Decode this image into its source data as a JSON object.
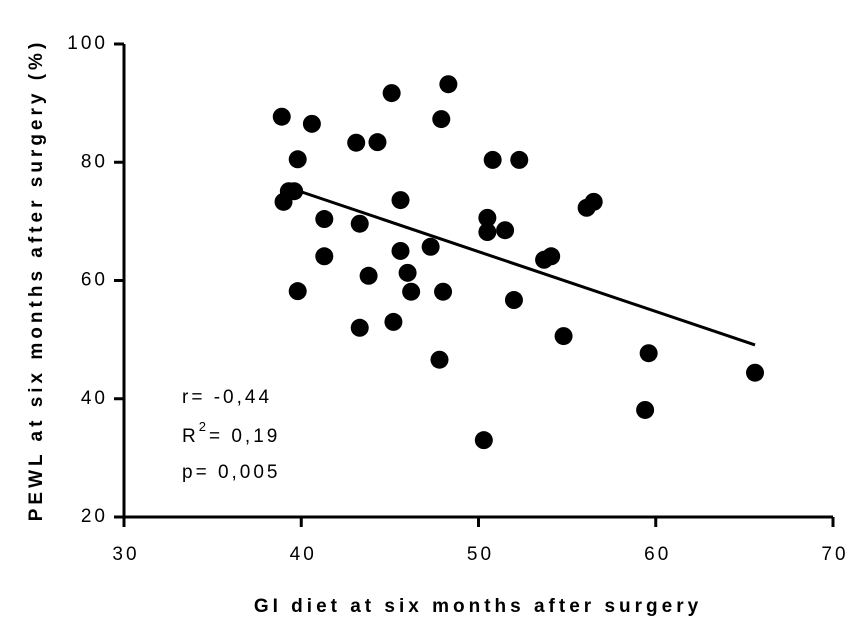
{
  "chart_data": {
    "type": "scatter",
    "x_label": "GI diet at six months after surgery",
    "y_label": "PEWL at six months after surgery (%)",
    "xlim": [
      30,
      70
    ],
    "xticks": [
      30,
      40,
      50,
      60,
      70
    ],
    "ylim": [
      20,
      100
    ],
    "yticks": [
      20,
      40,
      60,
      80,
      100
    ],
    "color": "#000000",
    "x": [
      38.9,
      40.6,
      48.3,
      45.1,
      47.9,
      43.1,
      44.3,
      39.8,
      50.8,
      52.3,
      39.3,
      39.6,
      39.0,
      45.6,
      56.5,
      56.1,
      41.3,
      50.5,
      43.3,
      51.5,
      50.5,
      45.6,
      47.3,
      54.1,
      53.7,
      41.3,
      46.0,
      43.8,
      39.8,
      46.2,
      48.0,
      52.0,
      43.3,
      45.2,
      54.8,
      59.6,
      47.8,
      65.6,
      59.4,
      50.3
    ],
    "values": [
      87.7,
      86.5,
      93.2,
      91.7,
      87.3,
      83.3,
      83.4,
      80.5,
      80.4,
      80.4,
      75.1,
      75.1,
      73.3,
      73.6,
      73.3,
      72.3,
      70.4,
      70.6,
      69.6,
      68.5,
      68.2,
      65.0,
      65.7,
      64.1,
      63.5,
      64.1,
      61.3,
      60.8,
      58.2,
      58.1,
      58.1,
      56.7,
      52.0,
      53.0,
      50.6,
      47.7,
      46.6,
      44.4,
      38.1,
      33.0
    ],
    "trendline": {
      "x": [
        39.4,
        65.6
      ],
      "values": [
        75.6,
        49.1
      ]
    },
    "annotations": [
      {
        "text": "r= -0,44"
      },
      {
        "text": "R",
        "sup": "2",
        "rest": "= 0,19"
      },
      {
        "text": "p= 0,005"
      }
    ]
  }
}
